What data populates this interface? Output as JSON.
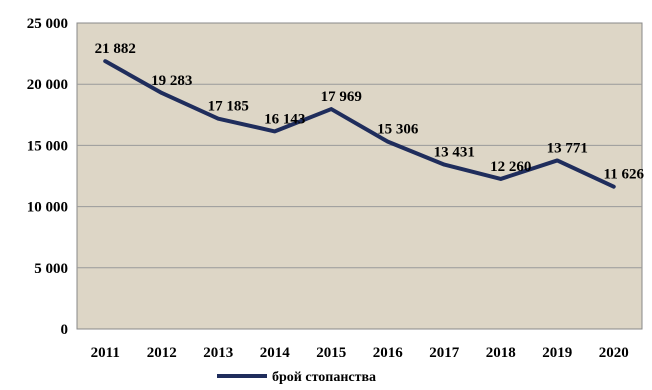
{
  "chart_data": {
    "type": "line",
    "title": "",
    "xlabel": "",
    "ylabel": "",
    "x": [
      "2011",
      "2012",
      "2013",
      "2014",
      "2015",
      "2016",
      "2017",
      "2018",
      "2019",
      "2020"
    ],
    "series": [
      {
        "name": "брой стопанства",
        "values": [
          21882,
          19283,
          17185,
          16143,
          17969,
          15306,
          13431,
          12260,
          13771,
          11626
        ],
        "labels": [
          "21 882",
          "19 283",
          "17 185",
          "16 143",
          "17 969",
          "15 306",
          "13 431",
          "12 260",
          "13 771",
          "11 626"
        ],
        "color": "#1f2d5c"
      }
    ],
    "ylim": [
      0,
      25000
    ],
    "yticks": [
      0,
      5000,
      10000,
      15000,
      20000,
      25000
    ],
    "ytick_labels": [
      "0",
      "5 000",
      "10 000",
      "15 000",
      "20 000",
      "25 000"
    ],
    "grid": true,
    "legend": "bottom",
    "plot_background": "#ddd6c6",
    "grid_color": "#9a9a9a"
  }
}
